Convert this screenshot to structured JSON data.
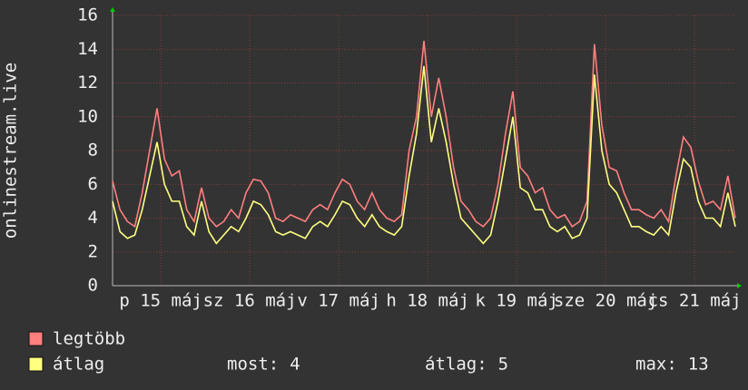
{
  "chart_data": {
    "type": "line",
    "ylabel": "onlinestream.live",
    "x": [
      0,
      2,
      4,
      6,
      8,
      10,
      12,
      14,
      16,
      18,
      20,
      22,
      24,
      26,
      28,
      30,
      32,
      34,
      36,
      38,
      40,
      42,
      44,
      46,
      48,
      50,
      52,
      54,
      56,
      58,
      60,
      62,
      64,
      66,
      68,
      70,
      72,
      74,
      76,
      78,
      80,
      82,
      84,
      86,
      88,
      90,
      92,
      94,
      96,
      98,
      100,
      102,
      104,
      106,
      108,
      110,
      112,
      114,
      116,
      118,
      120,
      122,
      124,
      126,
      128,
      130,
      132,
      134,
      136,
      138,
      140,
      142,
      144,
      146,
      148,
      150,
      152,
      154,
      156,
      158,
      160,
      162,
      164,
      166,
      168
    ],
    "xlim": [
      0,
      168
    ],
    "xticks": [
      {
        "value": 13,
        "label": "p 15 máj"
      },
      {
        "value": 37,
        "label": "sz 16 máj"
      },
      {
        "value": 61,
        "label": "v 17 máj"
      },
      {
        "value": 85,
        "label": "h 18 máj"
      },
      {
        "value": 109,
        "label": "k 19 máj"
      },
      {
        "value": 133,
        "label": "sze 20 máj"
      },
      {
        "value": 157,
        "label": "cs 21 máj"
      }
    ],
    "ylim": [
      0,
      16
    ],
    "yticks": [
      0,
      2,
      4,
      6,
      8,
      10,
      12,
      14,
      16
    ],
    "grid": true,
    "series": [
      {
        "name": "legtöbb",
        "color": "#ff7f7f",
        "values": [
          6.2,
          4.5,
          3.8,
          3.5,
          5.5,
          8,
          10.5,
          7.5,
          6.5,
          6.8,
          4.5,
          3.8,
          5.8,
          4,
          3.5,
          3.8,
          4.5,
          4,
          5.5,
          6.3,
          6.2,
          5.5,
          4,
          3.8,
          4.2,
          4,
          3.8,
          4.5,
          4.8,
          4.5,
          5.5,
          6.3,
          6,
          5,
          4.5,
          5.5,
          4.5,
          4,
          3.8,
          4.2,
          8,
          10,
          14.5,
          10,
          12.3,
          10,
          7,
          5,
          4.5,
          3.8,
          3.5,
          4,
          6,
          9,
          11.5,
          7,
          6.5,
          5.5,
          5.8,
          4.5,
          4,
          4.2,
          3.5,
          3.8,
          5,
          14.3,
          9.5,
          7,
          6.8,
          5.5,
          4.5,
          4.5,
          4.2,
          4,
          4.5,
          3.8,
          6.5,
          8.8,
          8.2,
          6.2,
          4.8,
          5,
          4.5,
          6.5,
          4
        ]
      },
      {
        "name": "átlag",
        "color": "#ffff80",
        "values": [
          5,
          3.2,
          2.8,
          3,
          4.5,
          6.5,
          8.5,
          6,
          5,
          5,
          3.5,
          3,
          5,
          3.2,
          2.5,
          3,
          3.5,
          3.2,
          4,
          5,
          4.8,
          4.2,
          3.2,
          3,
          3.2,
          3,
          2.8,
          3.5,
          3.8,
          3.5,
          4.2,
          5,
          4.8,
          4,
          3.5,
          4.2,
          3.5,
          3.2,
          3,
          3.5,
          6.5,
          9,
          13,
          8.5,
          10.5,
          8.5,
          6,
          4,
          3.5,
          3,
          2.5,
          3,
          5,
          7.5,
          10,
          5.8,
          5.5,
          4.5,
          4.5,
          3.5,
          3.2,
          3.5,
          2.8,
          3,
          4,
          12.5,
          8,
          6,
          5.5,
          4.5,
          3.5,
          3.5,
          3.2,
          3,
          3.5,
          3,
          5.5,
          7.5,
          7,
          5,
          4,
          4,
          3.5,
          5.5,
          3.5
        ]
      }
    ],
    "stats": [
      {
        "label": "most:",
        "value": 4
      },
      {
        "label": "átlag:",
        "value": 5
      },
      {
        "label": "max:",
        "value": 13
      }
    ]
  }
}
